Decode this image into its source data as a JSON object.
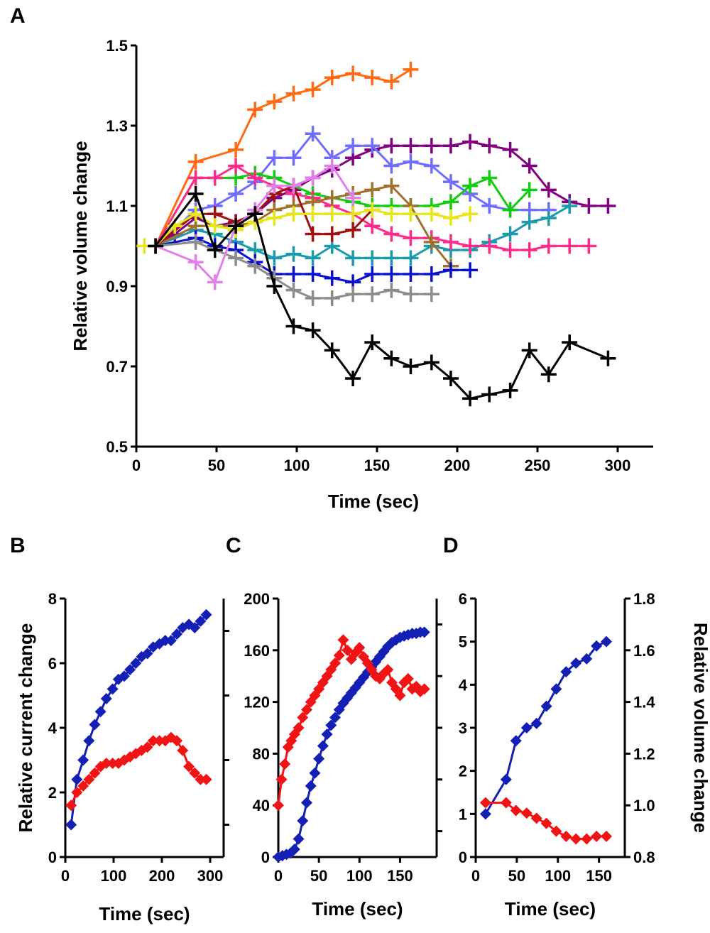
{
  "figure": {
    "panel_letters": [
      "A",
      "B",
      "C",
      "D"
    ]
  },
  "chart_data": [
    {
      "id": "A",
      "type": "line",
      "marker": "plus",
      "xlabel": "Time (sec)",
      "ylabel": "Relative volume change",
      "xlim": [
        0,
        320
      ],
      "ylim": [
        0.5,
        1.5
      ],
      "xticks": [
        0,
        50,
        100,
        150,
        200,
        250,
        300
      ],
      "yticks": [
        0.5,
        0.7,
        0.9,
        1.1,
        1.3,
        1.5
      ],
      "ytick_labels": [
        "0.5",
        "0.7",
        "0.9",
        "1.1",
        "1.3",
        "1.5"
      ],
      "series": [
        {
          "name": "orange",
          "color": "#ff6a13",
          "x": [
            12,
            37,
            62,
            74,
            86,
            98,
            110,
            122,
            135,
            147,
            159,
            171
          ],
          "y": [
            1.0,
            1.21,
            1.24,
            1.34,
            1.36,
            1.38,
            1.39,
            1.42,
            1.43,
            1.42,
            1.41,
            1.44
          ]
        },
        {
          "name": "purple",
          "color": "#800080",
          "x": [
            12,
            24,
            37,
            49,
            62,
            74,
            86,
            98,
            110,
            122,
            135,
            147,
            159,
            171,
            184,
            196,
            208,
            220,
            233,
            245,
            257,
            270,
            282,
            294
          ],
          "y": [
            1.0,
            1.03,
            1.07,
            1.05,
            1.06,
            1.08,
            1.12,
            1.14,
            1.17,
            1.19,
            1.22,
            1.24,
            1.25,
            1.25,
            1.25,
            1.25,
            1.26,
            1.25,
            1.24,
            1.2,
            1.14,
            1.11,
            1.1,
            1.1
          ]
        },
        {
          "name": "periwinkle",
          "color": "#6f6cff",
          "x": [
            12,
            37,
            49,
            62,
            74,
            86,
            98,
            110,
            122,
            135,
            147,
            159,
            171,
            184,
            196,
            208,
            220,
            233,
            245,
            257
          ],
          "y": [
            1.0,
            1.09,
            1.1,
            1.13,
            1.16,
            1.22,
            1.22,
            1.28,
            1.22,
            1.25,
            1.25,
            1.2,
            1.21,
            1.2,
            1.16,
            1.13,
            1.1,
            1.09,
            1.09,
            1.09
          ]
        },
        {
          "name": "green",
          "color": "#11cc11",
          "x": [
            12,
            37,
            49,
            62,
            74,
            86,
            98,
            110,
            122,
            135,
            147,
            159,
            171,
            184,
            196,
            208,
            220,
            233,
            245
          ],
          "y": [
            1.0,
            1.17,
            1.17,
            1.17,
            1.18,
            1.17,
            1.15,
            1.13,
            1.12,
            1.11,
            1.1,
            1.1,
            1.1,
            1.1,
            1.11,
            1.15,
            1.17,
            1.09,
            1.14
          ]
        },
        {
          "name": "teal",
          "color": "#1a9aaa",
          "x": [
            12,
            37,
            49,
            62,
            74,
            86,
            98,
            110,
            122,
            135,
            147,
            159,
            171,
            184,
            196,
            208,
            220,
            233,
            245,
            257,
            270
          ],
          "y": [
            1.0,
            1.04,
            1.03,
            1.01,
            0.99,
            0.97,
            0.98,
            0.97,
            1.0,
            0.97,
            0.97,
            0.97,
            0.97,
            1.0,
            0.99,
            0.99,
            1.01,
            1.03,
            1.06,
            1.07,
            1.1
          ]
        },
        {
          "name": "pink",
          "color": "#ff2a8c",
          "x": [
            12,
            37,
            49,
            62,
            74,
            86,
            98,
            110,
            122,
            135,
            147,
            159,
            171,
            184,
            196,
            208,
            220,
            233,
            245,
            257,
            270,
            282
          ],
          "y": [
            1.0,
            1.17,
            1.17,
            1.2,
            1.17,
            1.15,
            1.13,
            1.12,
            1.1,
            1.08,
            1.05,
            1.03,
            1.02,
            1.02,
            1.01,
            1.0,
            1.0,
            0.99,
            0.99,
            1.0,
            1.0,
            1.0
          ]
        },
        {
          "name": "brown",
          "color": "#a0712c",
          "x": [
            12,
            37,
            62,
            74,
            86,
            98,
            110,
            122,
            135,
            147,
            159,
            171,
            184,
            196
          ],
          "y": [
            1.0,
            1.05,
            1.05,
            1.06,
            1.09,
            1.1,
            1.11,
            1.12,
            1.13,
            1.14,
            1.15,
            1.1,
            1.01,
            0.95
          ]
        },
        {
          "name": "darkred",
          "color": "#a01010",
          "x": [
            12,
            37,
            49,
            62,
            74,
            86,
            98,
            110,
            122,
            135,
            147
          ],
          "y": [
            1.0,
            1.08,
            1.08,
            1.06,
            1.08,
            1.13,
            1.15,
            1.03,
            1.03,
            1.04,
            1.09
          ]
        },
        {
          "name": "blue",
          "color": "#0a10d0",
          "x": [
            12,
            37,
            49,
            62,
            74,
            86,
            98,
            110,
            122,
            135,
            147,
            159,
            171,
            184,
            196,
            208
          ],
          "y": [
            1.0,
            1.02,
            1.0,
            0.99,
            0.96,
            0.93,
            0.93,
            0.93,
            0.92,
            0.91,
            0.93,
            0.93,
            0.93,
            0.93,
            0.94,
            0.94
          ]
        },
        {
          "name": "gray",
          "color": "#8c8c8c",
          "x": [
            12,
            37,
            49,
            62,
            74,
            86,
            98,
            110,
            122,
            135,
            147,
            159,
            171,
            184
          ],
          "y": [
            1.0,
            1.01,
            0.99,
            0.97,
            0.95,
            0.92,
            0.89,
            0.87,
            0.87,
            0.88,
            0.88,
            0.89,
            0.88,
            0.88
          ]
        },
        {
          "name": "violet",
          "color": "#e080e8",
          "x": [
            12,
            37,
            49,
            62,
            74,
            86,
            98,
            110,
            122,
            135
          ],
          "y": [
            1.0,
            0.96,
            0.91,
            1.05,
            1.09,
            1.15,
            1.15,
            1.17,
            1.2,
            1.12
          ]
        },
        {
          "name": "yellow",
          "color": "#e6e619",
          "x": [
            5,
            12,
            24,
            37,
            49,
            62,
            74,
            86,
            98,
            110,
            122,
            135,
            147,
            159,
            171,
            184,
            196,
            208
          ],
          "y": [
            1.0,
            1.0,
            1.05,
            1.08,
            1.05,
            1.04,
            1.06,
            1.07,
            1.08,
            1.08,
            1.08,
            1.08,
            1.09,
            1.08,
            1.08,
            1.08,
            1.07,
            1.08
          ]
        },
        {
          "name": "black",
          "color": "#000000",
          "x": [
            12,
            37,
            49,
            62,
            74,
            86,
            98,
            110,
            122,
            135,
            147,
            159,
            171,
            184,
            196,
            208,
            220,
            233,
            245,
            257,
            270,
            294
          ],
          "y": [
            1.0,
            1.13,
            0.99,
            1.05,
            1.08,
            0.9,
            0.8,
            0.79,
            0.74,
            0.67,
            0.76,
            0.72,
            0.7,
            0.71,
            0.67,
            0.62,
            0.63,
            0.64,
            0.74,
            0.68,
            0.76,
            0.72
          ]
        }
      ]
    },
    {
      "id": "B",
      "type": "line",
      "marker": "diamond",
      "xlabel": "Time (sec)",
      "ylabel": "Relative current change",
      "xlim": [
        0,
        310
      ],
      "ylim": [
        0,
        8
      ],
      "xticks": [
        0,
        100,
        200,
        300
      ],
      "yticks": [
        0,
        2,
        4,
        6,
        8
      ],
      "ytick_labels": [
        "0",
        "2",
        "4",
        "6",
        "8"
      ],
      "right_ticks": [
        1,
        3,
        5,
        7
      ],
      "series": [
        {
          "name": "current",
          "color": "#1420b4",
          "x": [
            12,
            24,
            37,
            49,
            61,
            73,
            85,
            98,
            110,
            122,
            134,
            146,
            158,
            170,
            182,
            195,
            207,
            219,
            231,
            243,
            256,
            268,
            280,
            292
          ],
          "y": [
            1.0,
            2.4,
            3.0,
            3.6,
            4.1,
            4.5,
            4.9,
            5.2,
            5.5,
            5.6,
            5.8,
            6.0,
            6.2,
            6.3,
            6.5,
            6.6,
            6.7,
            6.7,
            6.9,
            7.1,
            7.2,
            7.1,
            7.3,
            7.5
          ]
        },
        {
          "name": "volume",
          "color": "#f01414",
          "x": [
            12,
            24,
            37,
            49,
            61,
            73,
            85,
            98,
            110,
            122,
            134,
            146,
            158,
            170,
            182,
            195,
            207,
            219,
            231,
            243,
            256,
            268,
            280,
            292
          ],
          "y": [
            1.6,
            2.0,
            2.2,
            2.4,
            2.6,
            2.8,
            2.9,
            2.9,
            2.9,
            3.0,
            3.1,
            3.2,
            3.3,
            3.4,
            3.6,
            3.6,
            3.6,
            3.7,
            3.6,
            3.3,
            2.8,
            2.6,
            2.4,
            2.4
          ]
        }
      ]
    },
    {
      "id": "C",
      "type": "line",
      "marker": "diamond",
      "xlabel": "Time (sec)",
      "ylabel": "",
      "xlim": [
        0,
        185
      ],
      "ylim": [
        0,
        200
      ],
      "xticks": [
        0,
        50,
        100,
        150
      ],
      "yticks": [
        0,
        40,
        80,
        120,
        160,
        200
      ],
      "ytick_labels": [
        "0",
        "40",
        "80",
        "120",
        "160",
        "200"
      ],
      "right_ticks": [
        20,
        60,
        100,
        140,
        180
      ],
      "series": [
        {
          "name": "current",
          "color": "#1420b4",
          "x": [
            0,
            5,
            10,
            15,
            20,
            25,
            30,
            35,
            40,
            45,
            50,
            55,
            60,
            65,
            70,
            75,
            80,
            85,
            90,
            95,
            100,
            105,
            110,
            115,
            120,
            125,
            130,
            135,
            140,
            145,
            150,
            155,
            160,
            165,
            170,
            175,
            180
          ],
          "y": [
            0,
            1,
            2,
            3,
            6,
            14,
            28,
            42,
            55,
            65,
            76,
            86,
            95,
            102,
            108,
            114,
            119,
            123,
            127,
            131,
            135,
            139,
            143,
            147,
            151,
            155,
            159,
            163,
            166,
            168,
            170,
            171,
            172,
            173,
            173,
            174,
            174
          ]
        },
        {
          "name": "volume",
          "color": "#f01414",
          "x": [
            0,
            4,
            8,
            12,
            16,
            20,
            25,
            30,
            35,
            40,
            45,
            50,
            55,
            60,
            65,
            70,
            75,
            80,
            85,
            90,
            95,
            100,
            105,
            110,
            115,
            120,
            125,
            130,
            135,
            140,
            145,
            150,
            155,
            160,
            165,
            170,
            175,
            180
          ],
          "y": [
            40,
            60,
            72,
            85,
            90,
            95,
            100,
            108,
            114,
            120,
            125,
            130,
            135,
            140,
            145,
            150,
            156,
            168,
            160,
            153,
            158,
            162,
            155,
            150,
            145,
            140,
            138,
            142,
            145,
            135,
            130,
            125,
            135,
            138,
            130,
            132,
            128,
            130
          ]
        }
      ]
    },
    {
      "id": "D",
      "type": "line",
      "marker": "diamond",
      "xlabel": "Time (sec)",
      "ylabel": "",
      "y2label": "Relative volume change",
      "xlim": [
        0,
        175
      ],
      "ylim": [
        0,
        6
      ],
      "xticks": [
        0,
        50,
        100,
        150
      ],
      "yticks": [
        0,
        1,
        2,
        3,
        4,
        5,
        6
      ],
      "ytick_labels": [
        "0",
        "1",
        "2",
        "3",
        "4",
        "5",
        "6"
      ],
      "y2lim": [
        0.8,
        1.8
      ],
      "y2ticks": [
        0.8,
        1.0,
        1.2,
        1.4,
        1.6,
        1.8
      ],
      "y2tick_labels": [
        "0.8",
        "1.0",
        "1.2",
        "1.4",
        "1.6",
        "1.8"
      ],
      "series": [
        {
          "name": "current",
          "color": "#1420b4",
          "axis": "left",
          "x": [
            12,
            37,
            49,
            62,
            74,
            86,
            98,
            110,
            122,
            135,
            147,
            159
          ],
          "y": [
            1.0,
            1.8,
            2.7,
            3.0,
            3.1,
            3.5,
            3.9,
            4.3,
            4.5,
            4.6,
            4.9,
            5.0
          ]
        },
        {
          "name": "volume",
          "color": "#f01414",
          "axis": "right",
          "x": [
            12,
            37,
            49,
            62,
            74,
            86,
            98,
            110,
            122,
            135,
            147,
            159
          ],
          "y": [
            1.01,
            1.01,
            0.98,
            0.97,
            0.95,
            0.93,
            0.9,
            0.88,
            0.87,
            0.87,
            0.88,
            0.88
          ]
        }
      ]
    }
  ]
}
